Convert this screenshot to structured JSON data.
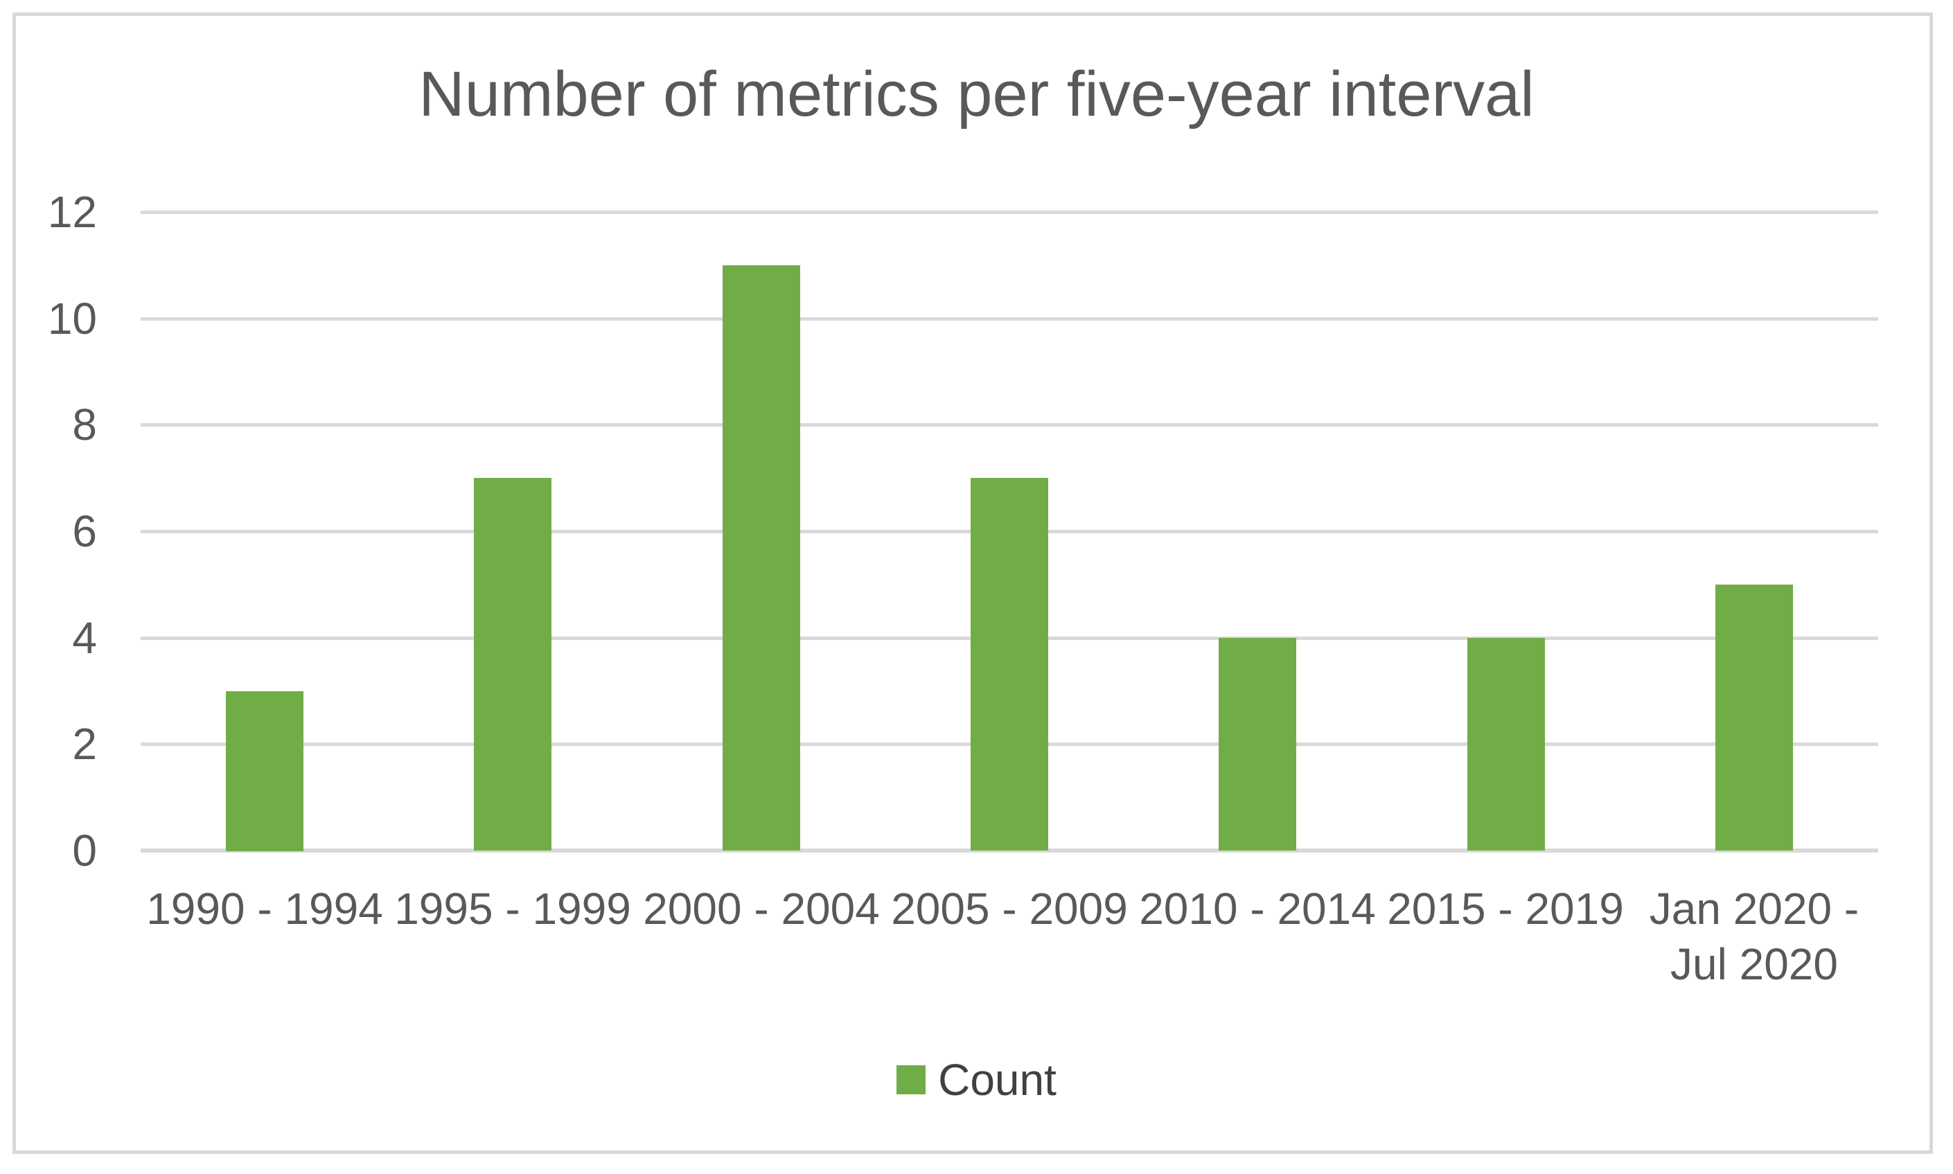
{
  "chart_data": {
    "type": "bar",
    "title": "Number of metrics per five-year interval",
    "categories": [
      "1990 - 1994",
      "1995 - 1999",
      "2000 - 2004",
      "2005 - 2009",
      "2010 - 2014",
      "2015 - 2019",
      "Jan 2020 -\nJul 2020"
    ],
    "series": [
      {
        "name": "Count",
        "values": [
          3,
          7,
          11,
          7,
          4,
          4,
          5
        ]
      }
    ],
    "xlabel": "",
    "ylabel": "",
    "ylim": [
      0,
      12
    ],
    "yticks": [
      0,
      2,
      4,
      6,
      8,
      10,
      12
    ],
    "grid": true,
    "legend_position": "bottom",
    "legend_swatch_icon": "green-square-icon",
    "colors": {
      "bar": "#70AD47",
      "gridline": "#D9D9D9",
      "axis_line": "#D9D9D9",
      "frame_border": "#D9D9D9",
      "title_text": "#595959",
      "axis_text": "#595959",
      "legend_text": "#404040",
      "background": "#FFFFFF"
    }
  }
}
